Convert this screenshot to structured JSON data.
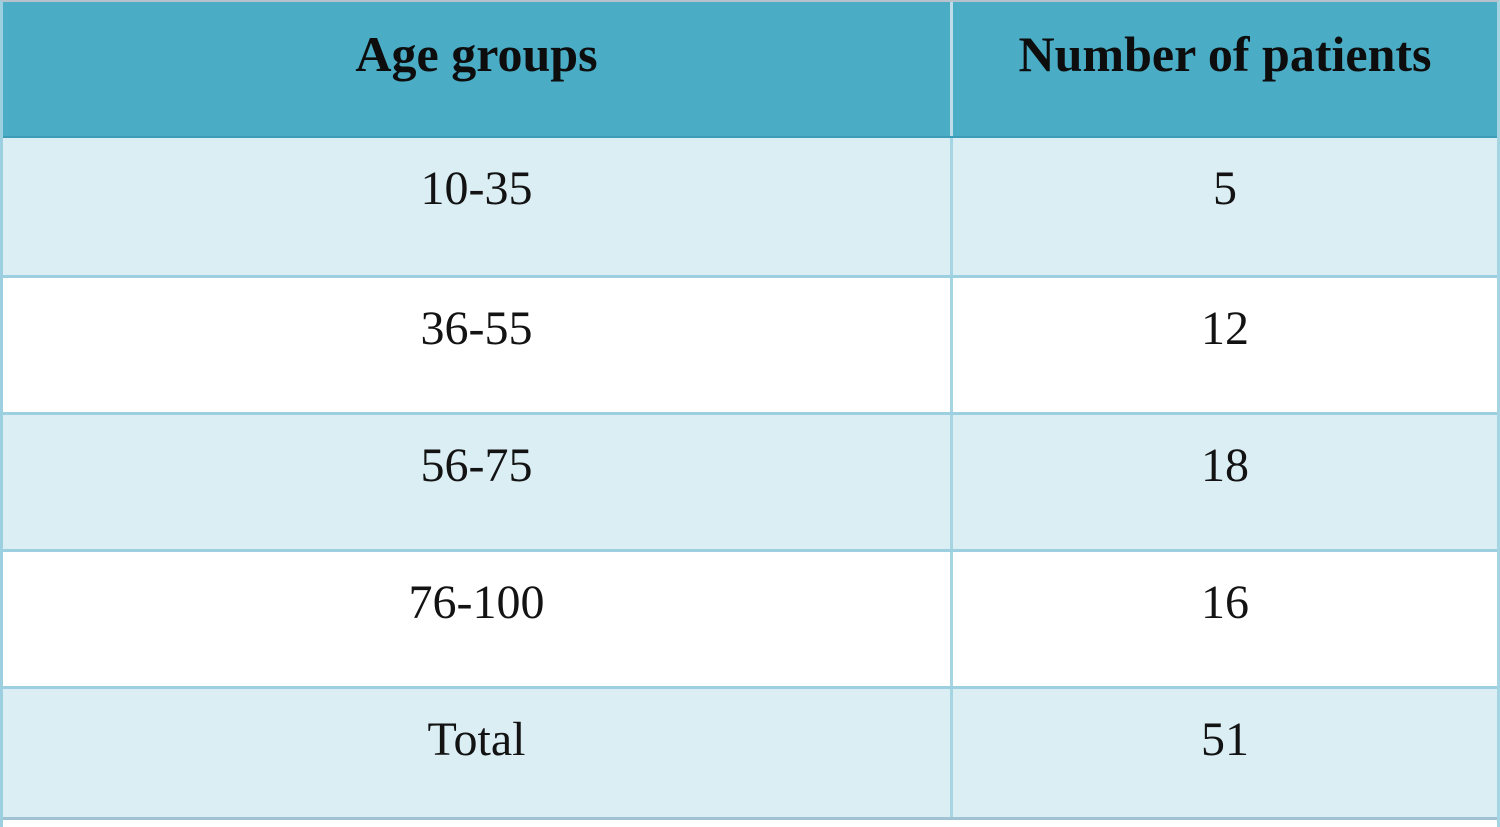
{
  "table": {
    "columns": [
      "Age groups",
      "Number of patients"
    ],
    "rows": [
      {
        "age": "10-35",
        "count": "5"
      },
      {
        "age": "36-55",
        "count": "12"
      },
      {
        "age": "56-75",
        "count": "18"
      },
      {
        "age": "76-100",
        "count": "16"
      },
      {
        "age": "Total",
        "count": "51"
      }
    ]
  },
  "colors": {
    "header_fill": "#4aacc5",
    "banded_row_fill": "#daeef4",
    "alternate_row_fill": "#ffffff",
    "grid_line": "#9ccfe0",
    "header_divider": "#bfdde8",
    "text": "#131313"
  },
  "chart_data": {
    "type": "table",
    "title": "",
    "columns": [
      "Age groups",
      "Number of patients"
    ],
    "rows": [
      [
        "10-35",
        5
      ],
      [
        "36-55",
        12
      ],
      [
        "56-75",
        18
      ],
      [
        "76-100",
        16
      ],
      [
        "Total",
        51
      ]
    ],
    "total": 51
  }
}
